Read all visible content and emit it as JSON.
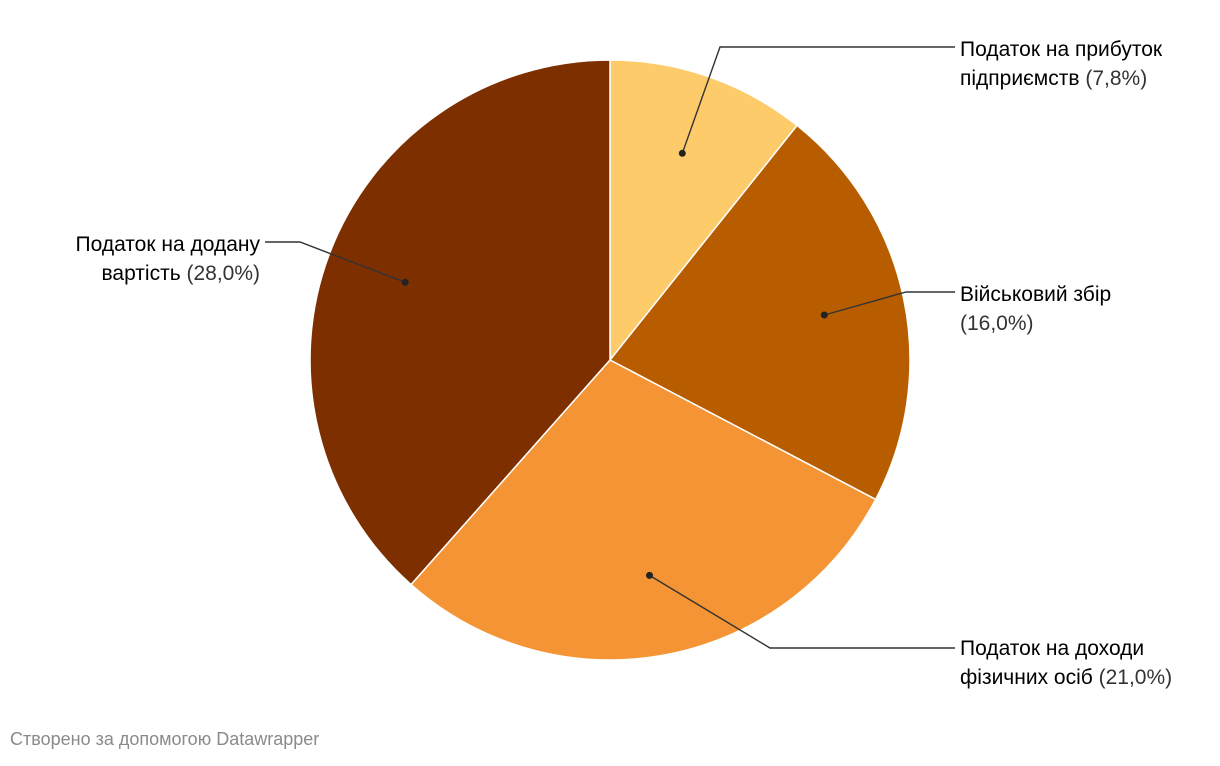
{
  "chart_data": {
    "type": "pie",
    "values": [
      7.8,
      16.0,
      21.0,
      28.0
    ],
    "slices": [
      {
        "line1": "Податок на прибуток",
        "line2": "підприємств",
        "pct": "(7,8%)",
        "value": 7.8,
        "color": "#fecb6b"
      },
      {
        "line1": "Військовий збір",
        "line2": "",
        "pct": "(16,0%)",
        "value": 16.0,
        "color": "#b75d00"
      },
      {
        "line1": "Податок на доходи",
        "line2": "фізичних осіб",
        "pct": "(21,0%)",
        "value": 21.0,
        "color": "#f49434"
      },
      {
        "line1": "Податок на додану",
        "line2": "вартість",
        "pct": "(28,0%)",
        "value": 28.0,
        "color": "#7d2f00"
      }
    ],
    "start_angle_deg": 0,
    "direction": "clockwise"
  },
  "footer": {
    "credit": "Створено за допомогою Datawrapper"
  }
}
